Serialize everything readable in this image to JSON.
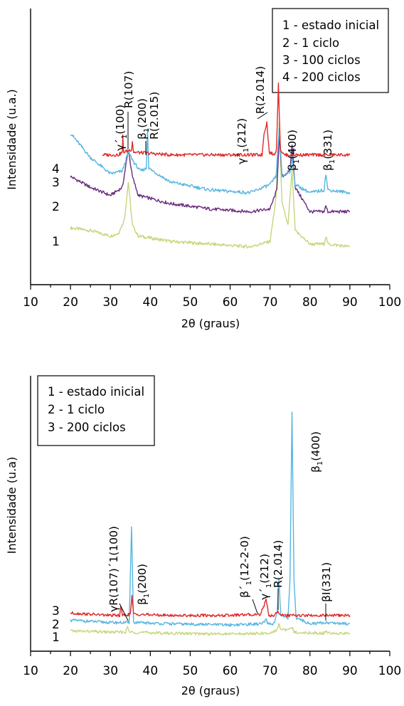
{
  "chart_data": [
    {
      "type": "line",
      "xlabel": "2θ (graus)",
      "ylabel": "Intensidade (u.a.)",
      "xlim": [
        10,
        100
      ],
      "xticks": [
        "10",
        "20",
        "30",
        "40",
        "50",
        "60",
        "70",
        "80",
        "90",
        "100"
      ],
      "x_unit": "graus",
      "legend": {
        "placement": "top-right",
        "entries": [
          "1 - estado inicial",
          "2 - 1 ciclo",
          "3 - 100 ciclos",
          "4 - 200 ciclos"
        ]
      },
      "series": [
        {
          "label": "1",
          "color": "#c6d67a",
          "points": [
            [
              20,
              0.21
            ],
            [
              25,
              0.2
            ],
            [
              30,
              0.18
            ],
            [
              32,
              0.19
            ],
            [
              33.5,
              0.24
            ],
            [
              34.5,
              0.38
            ],
            [
              35.5,
              0.22
            ],
            [
              37,
              0.18
            ],
            [
              45,
              0.16
            ],
            [
              55,
              0.15
            ],
            [
              65,
              0.14
            ],
            [
              70,
              0.16
            ],
            [
              71.5,
              0.32
            ],
            [
              72.3,
              0.6
            ],
            [
              73,
              0.3
            ],
            [
              74.5,
              0.22
            ],
            [
              75.5,
              0.42
            ],
            [
              76.3,
              0.2
            ],
            [
              80,
              0.15
            ],
            [
              83.5,
              0.15
            ],
            [
              84,
              0.18
            ],
            [
              84.5,
              0.15
            ],
            [
              90,
              0.14
            ]
          ]
        },
        {
          "label": "2",
          "color": "#6b2a7e",
          "points": [
            [
              20,
              0.4
            ],
            [
              25,
              0.36
            ],
            [
              30,
              0.33
            ],
            [
              33,
              0.36
            ],
            [
              34.5,
              0.5
            ],
            [
              35.5,
              0.4
            ],
            [
              37,
              0.33
            ],
            [
              45,
              0.3
            ],
            [
              55,
              0.28
            ],
            [
              65,
              0.27
            ],
            [
              70,
              0.28
            ],
            [
              71.7,
              0.35
            ],
            [
              72.3,
              0.55
            ],
            [
              73,
              0.4
            ],
            [
              75,
              0.42
            ],
            [
              75.5,
              0.52
            ],
            [
              76.3,
              0.36
            ],
            [
              80,
              0.27
            ],
            [
              83.5,
              0.27
            ],
            [
              84,
              0.29
            ],
            [
              84.5,
              0.27
            ],
            [
              90,
              0.27
            ]
          ]
        },
        {
          "label": "3",
          "color": "#56b6e0",
          "points": [
            [
              20,
              0.56
            ],
            [
              25,
              0.47
            ],
            [
              30,
              0.41
            ],
            [
              33,
              0.42
            ],
            [
              34.5,
              0.49
            ],
            [
              36,
              0.45
            ],
            [
              37.5,
              0.42
            ],
            [
              39,
              0.43
            ],
            [
              39.3,
              0.58
            ],
            [
              39.6,
              0.43
            ],
            [
              45,
              0.38
            ],
            [
              55,
              0.35
            ],
            [
              65,
              0.34
            ],
            [
              70,
              0.37
            ],
            [
              71.5,
              0.4
            ],
            [
              72.3,
              0.58
            ],
            [
              73,
              0.4
            ],
            [
              75,
              0.42
            ],
            [
              75.5,
              0.47
            ],
            [
              76.3,
              0.37
            ],
            [
              80,
              0.34
            ],
            [
              83.5,
              0.35
            ],
            [
              84,
              0.41
            ],
            [
              84.5,
              0.35
            ],
            [
              90,
              0.34
            ]
          ]
        },
        {
          "label": "4",
          "color": "#e02a2a",
          "points": [
            [
              28,
              0.48
            ],
            [
              32,
              0.48
            ],
            [
              33,
              0.49
            ],
            [
              33.1,
              0.55
            ],
            [
              33.3,
              0.49
            ],
            [
              35.3,
              0.5
            ],
            [
              35.5,
              0.53
            ],
            [
              35.8,
              0.49
            ],
            [
              45,
              0.48
            ],
            [
              60,
              0.48
            ],
            [
              68,
              0.48
            ],
            [
              68.5,
              0.56
            ],
            [
              69.2,
              0.6
            ],
            [
              69.8,
              0.49
            ],
            [
              71,
              0.48
            ],
            [
              71.6,
              0.5
            ],
            [
              72.1,
              0.74
            ],
            [
              72.6,
              0.5
            ],
            [
              73.5,
              0.48
            ],
            [
              80,
              0.48
            ],
            [
              90,
              0.48
            ]
          ]
        }
      ],
      "annotations": [
        {
          "text": "γ´",
          "sub": "1",
          "tail": "(100)",
          "x": 33.1
        },
        {
          "text": "R(107)",
          "x": 33.8
        },
        {
          "text": "β",
          "sub": "1",
          "tail": "(200)",
          "x": 35.4
        },
        {
          "text": "R(2.015)",
          "x": 39.3
        },
        {
          "text": "γ´",
          "sub": "1",
          "tail": "(212)",
          "x": 68.8
        },
        {
          "text": "R(2.014)",
          "x": 71.6
        },
        {
          "text": "β",
          "sub": "1",
          "tail": "(400)",
          "x": 75.5
        },
        {
          "text": "β",
          "sub": "1",
          "tail": "(331)",
          "x": 84
        }
      ]
    },
    {
      "type": "line",
      "xlabel": "2θ (graus)",
      "ylabel": "Intensidade (u.a)",
      "xlim": [
        10,
        100
      ],
      "xticks": [
        "10",
        "20",
        "30",
        "40",
        "50",
        "60",
        "70",
        "80",
        "90",
        "100"
      ],
      "x_unit": "graus",
      "legend": {
        "placement": "top-left",
        "entries": [
          "1 - estado inicial",
          "2 - 1 ciclo",
          "3 - 200 ciclos"
        ]
      },
      "series": [
        {
          "label": "1",
          "color": "#c6d67a",
          "points": [
            [
              20,
              0.085
            ],
            [
              30,
              0.08
            ],
            [
              33.8,
              0.08
            ],
            [
              34.3,
              0.1
            ],
            [
              34.8,
              0.08
            ],
            [
              45,
              0.075
            ],
            [
              60,
              0.072
            ],
            [
              70,
              0.075
            ],
            [
              71.8,
              0.09
            ],
            [
              72.2,
              0.12
            ],
            [
              72.7,
              0.09
            ],
            [
              75,
              0.09
            ],
            [
              75.5,
              0.1
            ],
            [
              76,
              0.08
            ],
            [
              83.5,
              0.075
            ],
            [
              84,
              0.085
            ],
            [
              84.5,
              0.075
            ],
            [
              90,
              0.075
            ]
          ]
        },
        {
          "label": "2",
          "color": "#56b6e0",
          "points": [
            [
              20,
              0.13
            ],
            [
              30,
              0.12
            ],
            [
              34.7,
              0.12
            ],
            [
              35.3,
              0.52
            ],
            [
              35.8,
              0.12
            ],
            [
              45,
              0.115
            ],
            [
              60,
              0.11
            ],
            [
              68,
              0.115
            ],
            [
              69,
              0.13
            ],
            [
              69.5,
              0.115
            ],
            [
              71,
              0.115
            ],
            [
              71.8,
              0.16
            ],
            [
              72.2,
              0.3
            ],
            [
              72.7,
              0.15
            ],
            [
              74.5,
              0.14
            ],
            [
              75,
              0.3
            ],
            [
              75.5,
              1.0
            ],
            [
              76,
              0.3
            ],
            [
              76.5,
              0.14
            ],
            [
              80,
              0.115
            ],
            [
              84,
              0.12
            ],
            [
              90,
              0.115
            ]
          ]
        },
        {
          "label": "3",
          "color": "#e02a2a",
          "points": [
            [
              20,
              0.16
            ],
            [
              30,
              0.15
            ],
            [
              32.3,
              0.15
            ],
            [
              32.6,
              0.19
            ],
            [
              33,
              0.15
            ],
            [
              35,
              0.155
            ],
            [
              35.4,
              0.23
            ],
            [
              35.8,
              0.155
            ],
            [
              45,
              0.15
            ],
            [
              60,
              0.15
            ],
            [
              67.5,
              0.155
            ],
            [
              68.5,
              0.19
            ],
            [
              69,
              0.22
            ],
            [
              69.7,
              0.15
            ],
            [
              71,
              0.15
            ],
            [
              72,
              0.17
            ],
            [
              72.5,
              0.15
            ],
            [
              80,
              0.15
            ],
            [
              90,
              0.15
            ]
          ]
        }
      ],
      "annotations": [
        {
          "text": "γR(107)´1(100)",
          "x": 34
        },
        {
          "text": "β",
          "sub": "1",
          "tail": "(200)",
          "x": 35.3
        },
        {
          "text": "β´",
          "sub": "1",
          "tail": "(12-2-0)",
          "x": 67.5
        },
        {
          "text": "γ´",
          "sub": "1",
          "tail": "(212)",
          "x": 69
        },
        {
          "text": "R(2.014)",
          "x": 72.2
        },
        {
          "text": "β",
          "sub": "1",
          "tail": "(400)",
          "x": 75.5
        },
        {
          "text": "β",
          "sub": "",
          "tail": "I(331)",
          "x": 84
        }
      ]
    }
  ]
}
